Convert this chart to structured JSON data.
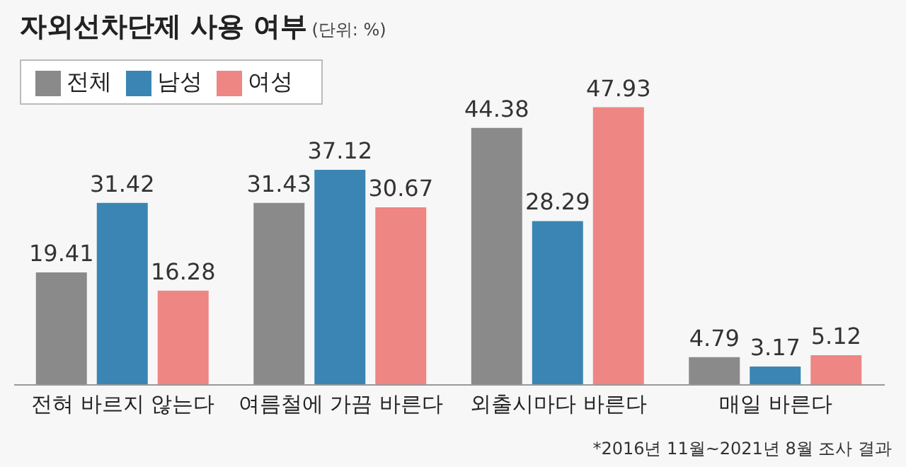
{
  "chart_data": {
    "type": "bar",
    "title": "자외선차단제 사용 여부",
    "subtitle": "(단위: %)",
    "categories": [
      "전혀 바르지 않는다",
      "여름철에 가끔 바른다",
      "외출시마다 바른다",
      "매일 바른다"
    ],
    "series": [
      {
        "name": "전체",
        "color": "#8a8a8a",
        "values": [
          19.41,
          31.43,
          44.38,
          4.79
        ]
      },
      {
        "name": "남성",
        "color": "#3a85b3",
        "values": [
          31.42,
          37.12,
          28.29,
          3.17
        ]
      },
      {
        "name": "여성",
        "color": "#ee8683",
        "values": [
          16.28,
          30.67,
          47.93,
          5.12
        ]
      }
    ],
    "data_labels": true,
    "legend": "top left",
    "grid": false,
    "annotations": [
      "*2016년 11월~2021년 8월 조사 결과"
    ]
  }
}
